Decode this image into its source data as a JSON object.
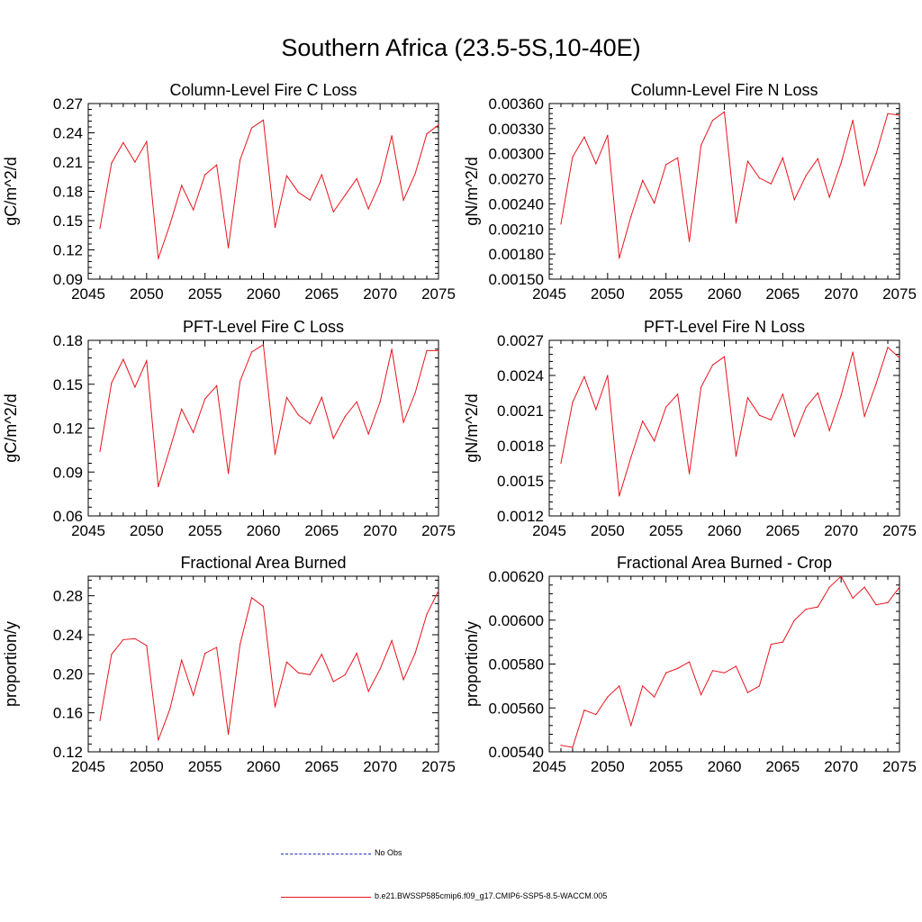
{
  "page": {
    "title": "Southern Africa (23.5-5S,10-40E)"
  },
  "legend": {
    "items": [
      {
        "label": "No Obs",
        "color": "#1f2dbf",
        "style": "dashed"
      },
      {
        "label": "b.e21.BWSSP585cmip6.f09_g17.CMIP6-SSP5-8.5-WACCM.005",
        "color": "#e8141d",
        "style": "solid"
      }
    ]
  },
  "colors": {
    "series": "#e8141d",
    "obs": "#1f2dbf",
    "axis": "#000000"
  },
  "chart_data": [
    {
      "type": "line",
      "title": "Column-Level Fire C Loss",
      "xlabel": "",
      "ylabel": "gC/m^2/d",
      "xlim": [
        2045,
        2075
      ],
      "ylim": [
        0.09,
        0.27
      ],
      "xticks": [
        "2045",
        "2050",
        "2055",
        "2060",
        "2065",
        "2070",
        "2075"
      ],
      "yticks": [
        "0.09",
        "0.12",
        "0.15",
        "0.18",
        "0.21",
        "0.24",
        "0.27"
      ],
      "x": [
        2046,
        2047,
        2048,
        2049,
        2050,
        2051,
        2052,
        2053,
        2054,
        2055,
        2056,
        2057,
        2058,
        2059,
        2060,
        2061,
        2062,
        2063,
        2064,
        2065,
        2066,
        2067,
        2068,
        2069,
        2070,
        2071,
        2072,
        2073,
        2074,
        2075
      ],
      "series": [
        {
          "name": "b.e21.BWSSP585cmip6.f09_g17.CMIP6-SSP5-8.5-WACCM.005",
          "values": [
            0.142,
            0.209,
            0.23,
            0.21,
            0.231,
            0.111,
            0.146,
            0.186,
            0.161,
            0.197,
            0.207,
            0.122,
            0.212,
            0.245,
            0.253,
            0.143,
            0.196,
            0.179,
            0.171,
            0.197,
            0.159,
            0.176,
            0.193,
            0.162,
            0.189,
            0.237,
            0.171,
            0.198,
            0.239,
            0.248
          ]
        }
      ]
    },
    {
      "type": "line",
      "title": "Column-Level Fire N Loss",
      "xlabel": "",
      "ylabel": "gN/m^2/d",
      "xlim": [
        2045,
        2075
      ],
      "ylim": [
        0.0015,
        0.0036
      ],
      "xticks": [
        "2045",
        "2050",
        "2055",
        "2060",
        "2065",
        "2070",
        "2075"
      ],
      "yticks": [
        "0.00150",
        "0.00180",
        "0.00210",
        "0.00240",
        "0.00270",
        "0.00300",
        "0.00330",
        "0.00360"
      ],
      "x": [
        2046,
        2047,
        2048,
        2049,
        2050,
        2051,
        2052,
        2053,
        2054,
        2055,
        2056,
        2057,
        2058,
        2059,
        2060,
        2061,
        2062,
        2063,
        2064,
        2065,
        2066,
        2067,
        2068,
        2069,
        2070,
        2071,
        2072,
        2073,
        2074,
        2075
      ],
      "series": [
        {
          "name": "b.e21.BWSSP585cmip6.f09_g17.CMIP6-SSP5-8.5-WACCM.005",
          "values": [
            0.00216,
            0.00296,
            0.0032,
            0.00288,
            0.00322,
            0.00175,
            0.00225,
            0.00268,
            0.00241,
            0.00287,
            0.00295,
            0.00195,
            0.0031,
            0.0034,
            0.0035,
            0.00217,
            0.00291,
            0.00271,
            0.00264,
            0.00295,
            0.00245,
            0.00274,
            0.00294,
            0.00248,
            0.00289,
            0.0034,
            0.00262,
            0.003,
            0.00348,
            0.00346
          ]
        }
      ]
    },
    {
      "type": "line",
      "title": "PFT-Level Fire C Loss",
      "xlabel": "",
      "ylabel": "gC/m^2/d",
      "xlim": [
        2045,
        2075
      ],
      "ylim": [
        0.06,
        0.18
      ],
      "xticks": [
        "2045",
        "2050",
        "2055",
        "2060",
        "2065",
        "2070",
        "2075"
      ],
      "yticks": [
        "0.06",
        "0.09",
        "0.12",
        "0.15",
        "0.18"
      ],
      "x": [
        2046,
        2047,
        2048,
        2049,
        2050,
        2051,
        2052,
        2053,
        2054,
        2055,
        2056,
        2057,
        2058,
        2059,
        2060,
        2061,
        2062,
        2063,
        2064,
        2065,
        2066,
        2067,
        2068,
        2069,
        2070,
        2071,
        2072,
        2073,
        2074,
        2075
      ],
      "series": [
        {
          "name": "b.e21.BWSSP585cmip6.f09_g17.CMIP6-SSP5-8.5-WACCM.005",
          "values": [
            0.104,
            0.151,
            0.167,
            0.148,
            0.166,
            0.08,
            0.106,
            0.133,
            0.117,
            0.14,
            0.149,
            0.089,
            0.152,
            0.172,
            0.177,
            0.102,
            0.141,
            0.129,
            0.123,
            0.141,
            0.113,
            0.128,
            0.138,
            0.116,
            0.138,
            0.174,
            0.124,
            0.144,
            0.173,
            0.173
          ]
        }
      ]
    },
    {
      "type": "line",
      "title": "PFT-Level Fire N Loss",
      "xlabel": "",
      "ylabel": "gN/m^2/d",
      "xlim": [
        2045,
        2075
      ],
      "ylim": [
        0.0012,
        0.0027
      ],
      "xticks": [
        "2045",
        "2050",
        "2055",
        "2060",
        "2065",
        "2070",
        "2075"
      ],
      "yticks": [
        "0.0012",
        "0.0015",
        "0.0018",
        "0.0021",
        "0.0024",
        "0.0027"
      ],
      "x": [
        2046,
        2047,
        2048,
        2049,
        2050,
        2051,
        2052,
        2053,
        2054,
        2055,
        2056,
        2057,
        2058,
        2059,
        2060,
        2061,
        2062,
        2063,
        2064,
        2065,
        2066,
        2067,
        2068,
        2069,
        2070,
        2071,
        2072,
        2073,
        2074,
        2075
      ],
      "series": [
        {
          "name": "b.e21.BWSSP585cmip6.f09_g17.CMIP6-SSP5-8.5-WACCM.005",
          "values": [
            0.00165,
            0.00217,
            0.00239,
            0.00211,
            0.0024,
            0.00137,
            0.0017,
            0.00201,
            0.00184,
            0.00213,
            0.00224,
            0.00156,
            0.0023,
            0.00249,
            0.00256,
            0.00171,
            0.00221,
            0.00206,
            0.00202,
            0.00224,
            0.00188,
            0.00213,
            0.00225,
            0.00193,
            0.00223,
            0.0026,
            0.00205,
            0.00233,
            0.00264,
            0.00255
          ]
        }
      ]
    },
    {
      "type": "line",
      "title": "Fractional Area Burned",
      "xlabel": "",
      "ylabel": "proportion/y",
      "xlim": [
        2045,
        2075
      ],
      "ylim": [
        0.12,
        0.3
      ],
      "xticks": [
        "2045",
        "2050",
        "2055",
        "2060",
        "2065",
        "2070",
        "2075"
      ],
      "yticks": [
        "0.12",
        "0.16",
        "0.20",
        "0.24",
        "0.28"
      ],
      "x": [
        2046,
        2047,
        2048,
        2049,
        2050,
        2051,
        2052,
        2053,
        2054,
        2055,
        2056,
        2057,
        2058,
        2059,
        2060,
        2061,
        2062,
        2063,
        2064,
        2065,
        2066,
        2067,
        2068,
        2069,
        2070,
        2071,
        2072,
        2073,
        2074,
        2075
      ],
      "series": [
        {
          "name": "b.e21.BWSSP585cmip6.f09_g17.CMIP6-SSP5-8.5-WACCM.005",
          "values": [
            0.152,
            0.22,
            0.235,
            0.236,
            0.229,
            0.132,
            0.164,
            0.214,
            0.178,
            0.221,
            0.227,
            0.138,
            0.23,
            0.278,
            0.269,
            0.166,
            0.212,
            0.201,
            0.199,
            0.22,
            0.192,
            0.199,
            0.221,
            0.182,
            0.205,
            0.234,
            0.194,
            0.221,
            0.261,
            0.285
          ]
        }
      ]
    },
    {
      "type": "line",
      "title": "Fractional Area Burned - Crop",
      "xlabel": "",
      "ylabel": "proportion/y",
      "xlim": [
        2045,
        2075
      ],
      "ylim": [
        0.0054,
        0.0062
      ],
      "xticks": [
        "2045",
        "2050",
        "2055",
        "2060",
        "2065",
        "2070",
        "2075"
      ],
      "yticks": [
        "0.00540",
        "0.00560",
        "0.00580",
        "0.00600",
        "0.00620"
      ],
      "x": [
        2046,
        2047,
        2048,
        2049,
        2050,
        2051,
        2052,
        2053,
        2054,
        2055,
        2056,
        2057,
        2058,
        2059,
        2060,
        2061,
        2062,
        2063,
        2064,
        2065,
        2066,
        2067,
        2068,
        2069,
        2070,
        2071,
        2072,
        2073,
        2074,
        2075
      ],
      "series": [
        {
          "name": "b.e21.BWSSP585cmip6.f09_g17.CMIP6-SSP5-8.5-WACCM.005",
          "values": [
            0.00543,
            0.00542,
            0.00559,
            0.00557,
            0.00565,
            0.0057,
            0.00552,
            0.0057,
            0.00565,
            0.00576,
            0.00578,
            0.00581,
            0.00566,
            0.00577,
            0.00576,
            0.00579,
            0.00567,
            0.0057,
            0.00589,
            0.0059,
            0.006,
            0.00605,
            0.00606,
            0.00615,
            0.0062,
            0.0061,
            0.00615,
            0.00607,
            0.00608,
            0.00615
          ]
        }
      ]
    }
  ]
}
